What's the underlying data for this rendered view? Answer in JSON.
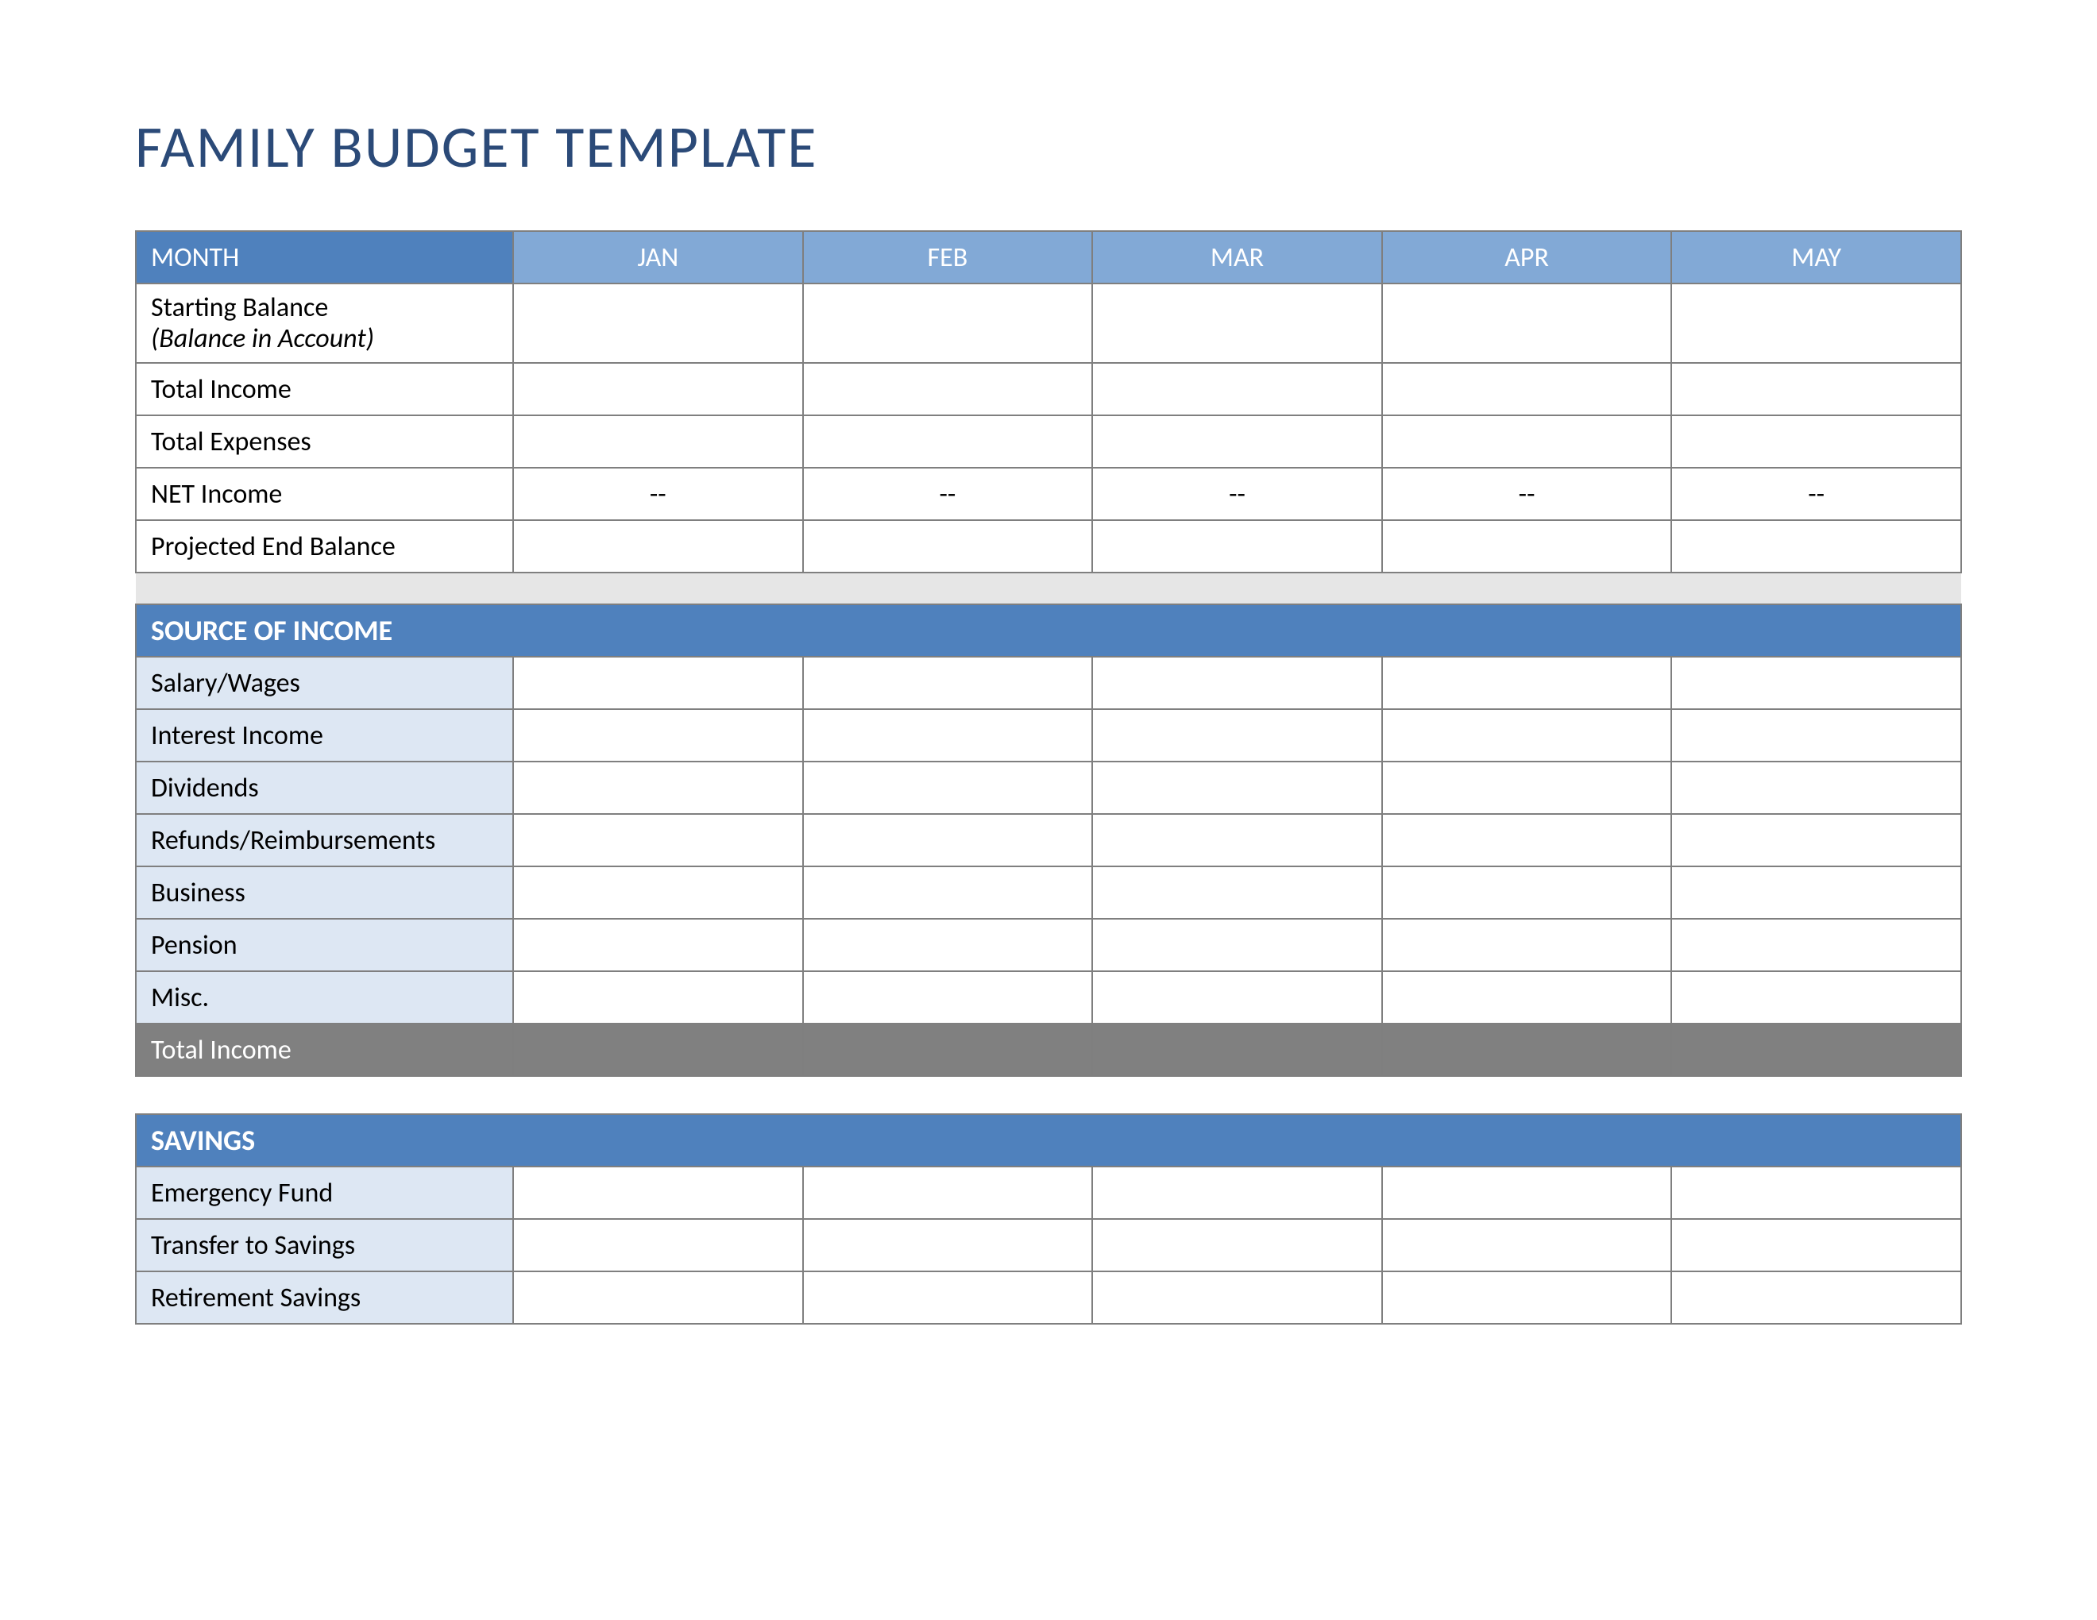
{
  "title": "FAMILY BUDGET TEMPLATE",
  "colors": {
    "title": "#2b4a78",
    "header_mid_blue": "#82a9d6",
    "header_dark_blue": "#4f81bd",
    "light_blue": "#dde7f3",
    "gray_total": "#808080",
    "spacer_gray": "#e6e6e6",
    "border": "#7f7f7f"
  },
  "months": {
    "header_label": "MONTH",
    "columns": [
      "JAN",
      "FEB",
      "MAR",
      "APR",
      "MAY"
    ]
  },
  "summary_rows": [
    {
      "label_main": "Starting Balance",
      "label_sub": "(Balance in Account)",
      "values": [
        "",
        "",
        "",
        "",
        ""
      ]
    },
    {
      "label_main": "Total Income",
      "values": [
        "",
        "",
        "",
        "",
        ""
      ]
    },
    {
      "label_main": "Total Expenses",
      "values": [
        "",
        "",
        "",
        "",
        ""
      ]
    },
    {
      "label_main": "NET Income",
      "values": [
        "--",
        "--",
        "--",
        "--",
        "--"
      ]
    },
    {
      "label_main": "Projected End Balance",
      "values": [
        "",
        "",
        "",
        "",
        ""
      ]
    }
  ],
  "sections": [
    {
      "title": "SOURCE OF INCOME",
      "rows": [
        {
          "label": "Salary/Wages",
          "values": [
            "",
            "",
            "",
            "",
            ""
          ]
        },
        {
          "label": "Interest Income",
          "values": [
            "",
            "",
            "",
            "",
            ""
          ]
        },
        {
          "label": "Dividends",
          "values": [
            "",
            "",
            "",
            "",
            ""
          ]
        },
        {
          "label": "Refunds/Reimbursements",
          "values": [
            "",
            "",
            "",
            "",
            ""
          ]
        },
        {
          "label": "Business",
          "values": [
            "",
            "",
            "",
            "",
            ""
          ]
        },
        {
          "label": "Pension",
          "values": [
            "",
            "",
            "",
            "",
            ""
          ]
        },
        {
          "label": "Misc.",
          "values": [
            "",
            "",
            "",
            "",
            ""
          ]
        }
      ],
      "total_label": "Total Income",
      "total_values": [
        "",
        "",
        "",
        "",
        ""
      ]
    },
    {
      "title": "SAVINGS",
      "rows": [
        {
          "label": "Emergency Fund",
          "values": [
            "",
            "",
            "",
            "",
            ""
          ]
        },
        {
          "label": "Transfer to Savings",
          "values": [
            "",
            "",
            "",
            "",
            ""
          ]
        },
        {
          "label": "Retirement Savings",
          "values": [
            "",
            "",
            "",
            "",
            ""
          ]
        }
      ]
    }
  ]
}
